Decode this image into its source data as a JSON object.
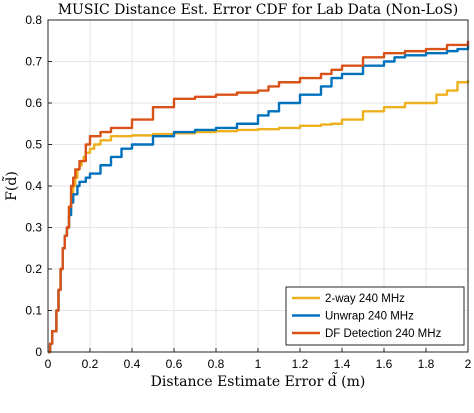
{
  "chart_data": {
    "type": "line",
    "title": "MUSIC Distance Est. Error CDF for Lab Data (Non-LoS)",
    "xlabel": "Distance Estimate Error d̃ (m)",
    "ylabel": "F(d̃)",
    "xlim": [
      0,
      2
    ],
    "ylim": [
      0,
      0.8
    ],
    "xticks": [
      0,
      0.2,
      0.4,
      0.6,
      0.8,
      1,
      1.2,
      1.4,
      1.6,
      1.8,
      2
    ],
    "xtick_labels": [
      "0",
      "0.2",
      "0.4",
      "0.6",
      "0.8",
      "1",
      "1.2",
      "1.4",
      "1.6",
      "1.8",
      "2"
    ],
    "yticks": [
      0,
      0.1,
      0.2,
      0.3,
      0.4,
      0.5,
      0.6,
      0.7,
      0.8
    ],
    "ytick_labels": [
      "0",
      "0.1",
      "0.2",
      "0.3",
      "0.4",
      "0.5",
      "0.6",
      "0.7",
      "0.8"
    ],
    "grid": true,
    "legend_position": "bottom-right",
    "series": [
      {
        "name": "2-way 240 MHz",
        "color": "#EDB120",
        "x": [
          0,
          0.01,
          0.02,
          0.04,
          0.05,
          0.06,
          0.07,
          0.08,
          0.09,
          0.1,
          0.11,
          0.12,
          0.13,
          0.14,
          0.15,
          0.16,
          0.17,
          0.18,
          0.2,
          0.22,
          0.25,
          0.3,
          0.4,
          0.5,
          0.6,
          0.7,
          0.8,
          0.9,
          1.0,
          1.1,
          1.2,
          1.3,
          1.35,
          1.4,
          1.5,
          1.6,
          1.7,
          1.8,
          1.85,
          1.9,
          1.95,
          2.0
        ],
        "y": [
          0,
          0.02,
          0.05,
          0.1,
          0.15,
          0.2,
          0.25,
          0.28,
          0.3,
          0.35,
          0.38,
          0.4,
          0.42,
          0.44,
          0.45,
          0.46,
          0.47,
          0.48,
          0.49,
          0.5,
          0.51,
          0.52,
          0.522,
          0.525,
          0.527,
          0.53,
          0.532,
          0.535,
          0.537,
          0.54,
          0.545,
          0.548,
          0.55,
          0.56,
          0.58,
          0.59,
          0.6,
          0.6,
          0.62,
          0.63,
          0.65,
          0.655
        ]
      },
      {
        "name": "Unwrap 240 MHz",
        "color": "#0072BD",
        "x": [
          0,
          0.01,
          0.02,
          0.04,
          0.05,
          0.06,
          0.07,
          0.08,
          0.09,
          0.1,
          0.11,
          0.12,
          0.14,
          0.15,
          0.18,
          0.2,
          0.25,
          0.3,
          0.35,
          0.4,
          0.5,
          0.6,
          0.7,
          0.8,
          0.9,
          1.0,
          1.05,
          1.1,
          1.2,
          1.3,
          1.35,
          1.4,
          1.5,
          1.6,
          1.65,
          1.7,
          1.8,
          1.9,
          1.95,
          2.0
        ],
        "y": [
          0,
          0.02,
          0.05,
          0.1,
          0.15,
          0.2,
          0.25,
          0.28,
          0.3,
          0.33,
          0.36,
          0.38,
          0.4,
          0.41,
          0.42,
          0.43,
          0.45,
          0.47,
          0.49,
          0.5,
          0.52,
          0.53,
          0.535,
          0.54,
          0.55,
          0.57,
          0.58,
          0.6,
          0.62,
          0.64,
          0.66,
          0.67,
          0.69,
          0.7,
          0.71,
          0.715,
          0.72,
          0.725,
          0.73,
          0.74
        ]
      },
      {
        "name": "DF Detection 240 MHz",
        "color": "#D95319",
        "x": [
          0,
          0.01,
          0.02,
          0.04,
          0.05,
          0.06,
          0.07,
          0.08,
          0.09,
          0.1,
          0.11,
          0.12,
          0.13,
          0.15,
          0.18,
          0.2,
          0.25,
          0.3,
          0.4,
          0.5,
          0.6,
          0.7,
          0.8,
          0.9,
          1.0,
          1.05,
          1.1,
          1.2,
          1.3,
          1.35,
          1.4,
          1.5,
          1.6,
          1.7,
          1.8,
          1.9,
          2.0
        ],
        "y": [
          0,
          0.02,
          0.05,
          0.1,
          0.15,
          0.2,
          0.25,
          0.28,
          0.3,
          0.35,
          0.4,
          0.42,
          0.44,
          0.46,
          0.5,
          0.52,
          0.53,
          0.54,
          0.56,
          0.59,
          0.61,
          0.615,
          0.62,
          0.625,
          0.63,
          0.64,
          0.65,
          0.66,
          0.67,
          0.68,
          0.69,
          0.71,
          0.72,
          0.725,
          0.73,
          0.74,
          0.75
        ]
      }
    ]
  }
}
